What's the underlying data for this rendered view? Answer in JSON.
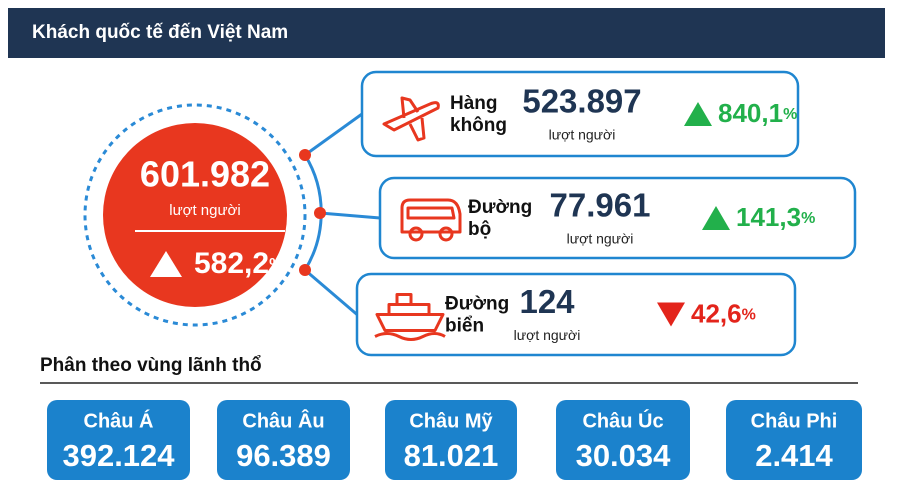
{
  "header": {
    "title": "Khách quốc tế đến Việt Nam"
  },
  "total": {
    "value": "601.982",
    "unit": "lượt người",
    "change": "582,2",
    "change_unit": "%",
    "direction": "up"
  },
  "modes": [
    {
      "label_lines": [
        "Hàng",
        "không"
      ],
      "value": "523.897",
      "unit": "lượt người",
      "change": "840,1",
      "change_unit": "%",
      "direction": "up",
      "icon": "plane"
    },
    {
      "label_lines": [
        "Đường",
        "bộ"
      ],
      "value": "77.961",
      "unit": "lượt người",
      "change": "141,3",
      "change_unit": "%",
      "direction": "up",
      "icon": "bus"
    },
    {
      "label_lines": [
        "Đường",
        "biển"
      ],
      "value": "124",
      "unit": "lượt người",
      "change": "42,6",
      "change_unit": "%",
      "direction": "down",
      "icon": "ship"
    }
  ],
  "regions_heading": "Phân theo vùng lãnh thổ",
  "regions": [
    {
      "name": "Châu Á",
      "value": "392.124"
    },
    {
      "name": "Châu Âu",
      "value": "96.389"
    },
    {
      "name": "Châu Mỹ",
      "value": "81.021"
    },
    {
      "name": "Châu Úc",
      "value": "30.034"
    },
    {
      "name": "Châu Phi",
      "value": "2.414"
    }
  ],
  "colors": {
    "up": "#22b04b",
    "down": "#e3241b",
    "accent": "#e8371f",
    "box": "#1b82cc",
    "header": "#1f3553"
  }
}
